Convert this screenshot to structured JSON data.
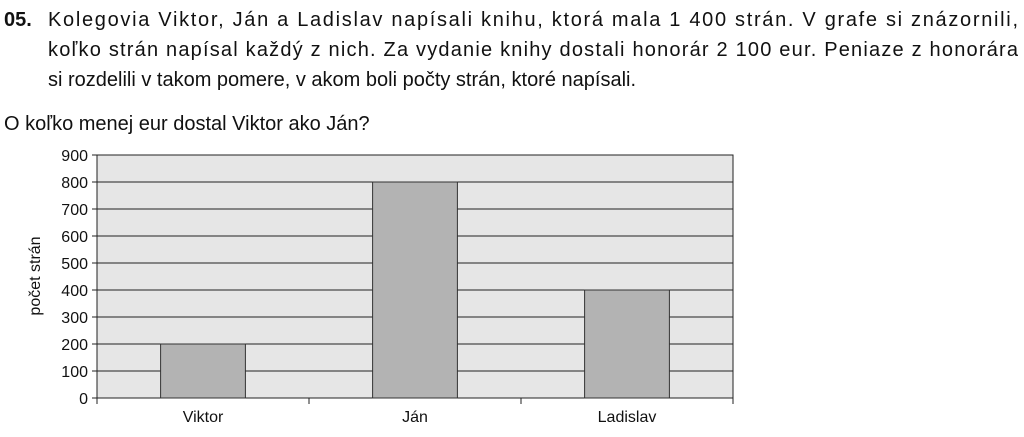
{
  "problem": {
    "number": "05.",
    "lines": [
      "Kolegovia Viktor, Ján a Ladislav napísali knihu, ktorá mala 1 400 strán. V grafe si znázornili,",
      "koľko strán napísal každý z nich. Za vydanie knihy dostali honorár 2 100 eur. Peniaze z honorára",
      "si rozdelili v takom pomere, v akom boli počty strán, ktoré napísali."
    ],
    "question": "O koľko menej eur dostal Viktor ako Ján?"
  },
  "chart_data": {
    "type": "bar",
    "y_label": "počet strán",
    "categories": [
      "Viktor",
      "Ján",
      "Ladislav"
    ],
    "values": [
      200,
      800,
      400
    ],
    "color": "#b3b3b3",
    "ylim": [
      0,
      900
    ],
    "yticks": [
      0,
      100,
      200,
      300,
      400,
      500,
      600,
      700,
      800,
      900
    ],
    "grid": true
  }
}
